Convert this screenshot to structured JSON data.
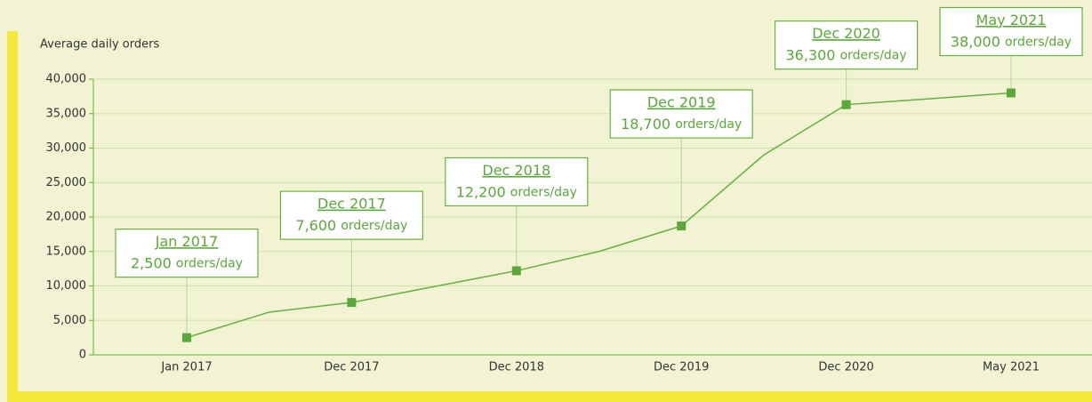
{
  "chart_data": {
    "type": "line",
    "y_label": "Average daily orders",
    "categories": [
      "Jan 2017",
      null,
      "Dec 2017",
      null,
      "Dec 2018",
      null,
      "Dec 2019",
      null,
      "Dec 2020",
      null,
      "May 2021"
    ],
    "series": [
      {
        "color": "#66b040",
        "values": [
          2500,
          6200,
          7600,
          9900,
          12200,
          15000,
          18700,
          29000,
          36300,
          37150,
          38000
        ],
        "value_labels": [
          "2,500",
          null,
          "7,600",
          null,
          "12,200",
          null,
          "18,700",
          null,
          "36,300",
          null,
          "38,000"
        ]
      }
    ],
    "annotation_unit": "orders/day",
    "ylim": [
      0,
      40000
    ],
    "yticks": [
      {
        "value": 0,
        "label": "0"
      },
      {
        "value": 5000,
        "label": "5,000"
      },
      {
        "value": 10000,
        "label": "10,000"
      },
      {
        "value": 15000,
        "label": "15,000"
      },
      {
        "value": 20000,
        "label": "20,000"
      },
      {
        "value": 25000,
        "label": "25,000"
      },
      {
        "value": 30000,
        "label": "30,000"
      },
      {
        "value": 35000,
        "label": "35,000"
      },
      {
        "value": 40000,
        "label": "40,000"
      }
    ],
    "grid": true
  }
}
